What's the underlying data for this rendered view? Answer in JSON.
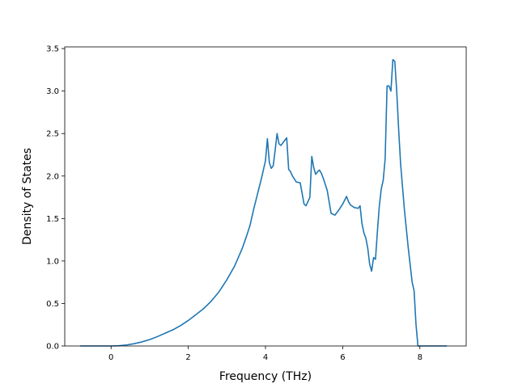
{
  "chart_data": {
    "type": "line",
    "title": "",
    "xlabel": "Frequency (THz)",
    "ylabel": "Density of States",
    "xlim": [
      -1.2,
      9.2
    ],
    "ylim": [
      0,
      3.52
    ],
    "xticks": [
      0,
      2,
      4,
      6,
      8
    ],
    "xtick_labels": [
      "0",
      "2",
      "4",
      "6",
      "8"
    ],
    "yticks": [
      0,
      0.5,
      1.0,
      1.5,
      2.0,
      2.5,
      3.0,
      3.5
    ],
    "ytick_labels": [
      "0.0",
      "0.5",
      "1.0",
      "1.5",
      "2.0",
      "2.5",
      "3.0",
      "3.5"
    ],
    "grid": false,
    "legend": "none",
    "series": [
      {
        "color": "#1f77b4",
        "x": [
          -0.8,
          -0.4,
          0.0,
          0.2,
          0.4,
          0.6,
          0.8,
          1.0,
          1.2,
          1.4,
          1.6,
          1.8,
          2.0,
          2.2,
          2.4,
          2.6,
          2.8,
          3.0,
          3.2,
          3.4,
          3.5,
          3.6,
          3.7,
          3.8,
          3.9,
          4.0,
          4.05,
          4.1,
          4.15,
          4.2,
          4.25,
          4.3,
          4.35,
          4.4,
          4.45,
          4.5,
          4.55,
          4.6,
          4.65,
          4.7,
          4.8,
          4.9,
          5.0,
          5.05,
          5.1,
          5.15,
          5.2,
          5.25,
          5.3,
          5.35,
          5.4,
          5.45,
          5.5,
          5.6,
          5.7,
          5.8,
          5.9,
          6.0,
          6.1,
          6.15,
          6.2,
          6.3,
          6.4,
          6.45,
          6.5,
          6.55,
          6.6,
          6.65,
          6.7,
          6.75,
          6.8,
          6.85,
          6.9,
          6.95,
          7.0,
          7.05,
          7.1,
          7.15,
          7.2,
          7.25,
          7.3,
          7.35,
          7.4,
          7.45,
          7.5,
          7.6,
          7.7,
          7.8,
          7.85,
          7.9,
          7.95,
          8.0,
          8.3,
          8.7
        ],
        "y": [
          0.0,
          0.0,
          0.0,
          0.003,
          0.012,
          0.027,
          0.048,
          0.075,
          0.11,
          0.15,
          0.19,
          0.24,
          0.3,
          0.37,
          0.44,
          0.53,
          0.64,
          0.78,
          0.94,
          1.15,
          1.28,
          1.42,
          1.62,
          1.8,
          1.98,
          2.18,
          2.44,
          2.16,
          2.09,
          2.12,
          2.3,
          2.5,
          2.38,
          2.36,
          2.39,
          2.42,
          2.45,
          2.08,
          2.05,
          2.0,
          1.93,
          1.92,
          1.67,
          1.65,
          1.7,
          1.75,
          2.23,
          2.1,
          2.02,
          2.05,
          2.07,
          2.03,
          1.97,
          1.83,
          1.56,
          1.54,
          1.6,
          1.67,
          1.76,
          1.7,
          1.66,
          1.63,
          1.62,
          1.65,
          1.44,
          1.33,
          1.27,
          1.15,
          0.96,
          0.88,
          1.04,
          1.02,
          1.35,
          1.65,
          1.85,
          1.95,
          2.2,
          3.06,
          3.06,
          3.0,
          3.37,
          3.35,
          3.0,
          2.55,
          2.15,
          1.6,
          1.15,
          0.75,
          0.65,
          0.25,
          0.0,
          0.0,
          0.0,
          0.0
        ]
      }
    ]
  }
}
